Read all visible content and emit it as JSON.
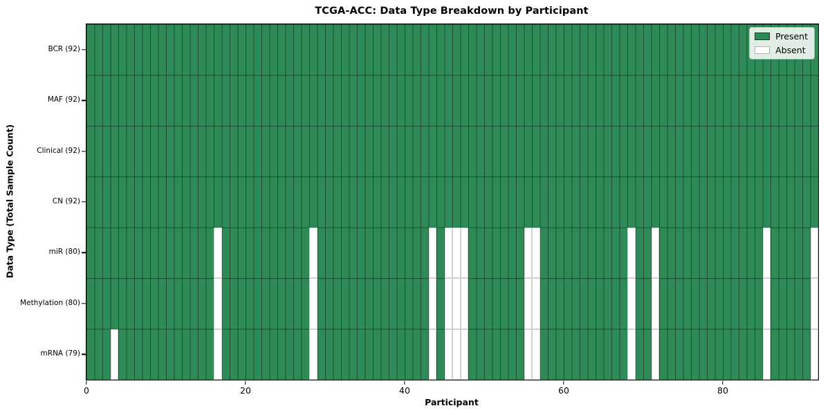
{
  "figure": {
    "title": "TCGA-ACC: Data Type Breakdown by Participant",
    "xlabel": "Participant",
    "ylabel": "Data Type (Total Sample Count)",
    "legend": {
      "present_label": "Present",
      "absent_label": "Absent"
    },
    "colors": {
      "present": "#2E8B57",
      "absent": "#FFFFFF",
      "grid_on_present": "rgba(0,0,0,0.42)",
      "grid_on_absent": "#CFCFCF",
      "spine": "#000000",
      "legend_border": "#B4B4B4"
    }
  },
  "chart_data": {
    "type": "heatmap",
    "title": "TCGA-ACC: Data Type Breakdown by Participant",
    "xlabel": "Participant",
    "ylabel": "Data Type (Total Sample Count)",
    "n_participants": 92,
    "x_ticks": [
      0,
      20,
      40,
      60,
      80
    ],
    "x_range": [
      0,
      91
    ],
    "grid": true,
    "legend_entries": [
      "Present",
      "Absent"
    ],
    "legend_position": "upper right",
    "cell_values": {
      "present": 1,
      "absent": 0
    },
    "rows": [
      {
        "label": "BCR (92)",
        "data_type": "BCR",
        "present_count": 92,
        "absent_participants": []
      },
      {
        "label": "MAF (92)",
        "data_type": "MAF",
        "present_count": 92,
        "absent_participants": []
      },
      {
        "label": "Clinical (92)",
        "data_type": "Clinical",
        "present_count": 92,
        "absent_participants": []
      },
      {
        "label": "CN (92)",
        "data_type": "CN",
        "present_count": 92,
        "absent_participants": []
      },
      {
        "label": "miR (80)",
        "data_type": "miR",
        "present_count": 80,
        "absent_participants": [
          16,
          28,
          43,
          45,
          46,
          47,
          55,
          56,
          68,
          71,
          85,
          91
        ]
      },
      {
        "label": "Methylation (80)",
        "data_type": "Methylation",
        "present_count": 80,
        "absent_participants": [
          16,
          28,
          43,
          45,
          46,
          47,
          55,
          56,
          68,
          71,
          85,
          91
        ]
      },
      {
        "label": "mRNA (79)",
        "data_type": "mRNA",
        "present_count": 79,
        "absent_participants": [
          3,
          16,
          28,
          43,
          45,
          46,
          47,
          55,
          56,
          68,
          71,
          85,
          91
        ]
      }
    ]
  }
}
